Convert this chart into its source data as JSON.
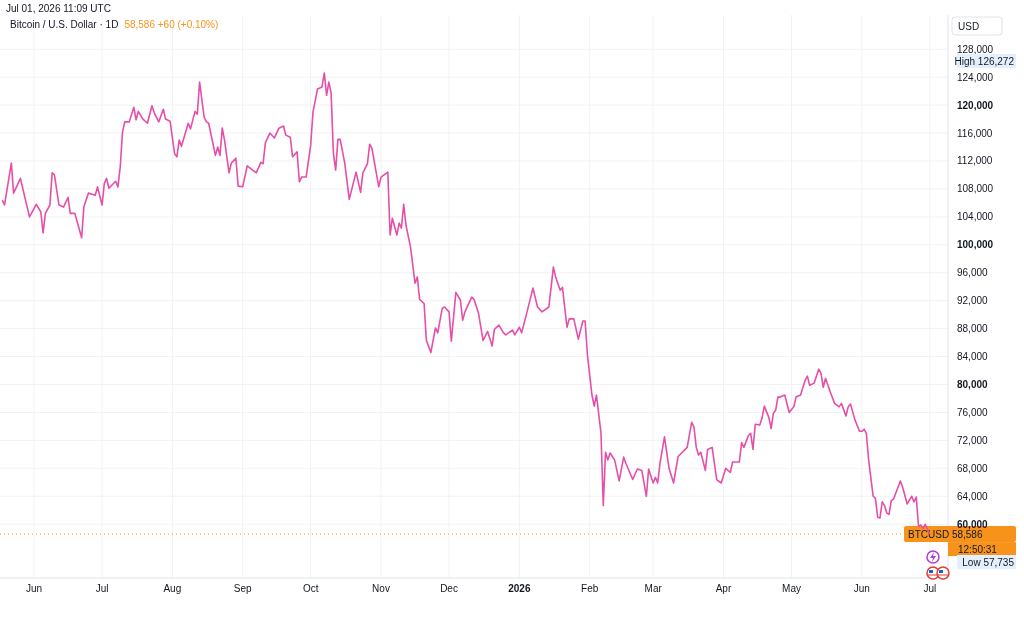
{
  "chart_data": {
    "type": "line",
    "title": "Bitcoin / U.S. Dollar · 1D",
    "subtitle": "58,586 +60 (+0.10%)",
    "ylabel": "USD",
    "x": [
      "2025-05-18",
      "2025-05-19",
      "2025-05-22",
      "2025-05-23",
      "2025-05-26",
      "2025-05-30",
      "2025-06-02",
      "2025-06-04",
      "2025-06-05",
      "2025-06-06",
      "2025-06-08",
      "2025-06-09",
      "2025-06-10",
      "2025-06-12",
      "2025-06-14",
      "2025-06-16",
      "2025-06-17",
      "2025-06-19",
      "2025-06-22",
      "2025-06-23",
      "2025-06-25",
      "2025-06-28",
      "2025-06-29",
      "2025-07-01",
      "2025-07-02",
      "2025-07-03",
      "2025-07-04",
      "2025-07-07",
      "2025-07-08",
      "2025-07-09",
      "2025-07-10",
      "2025-07-11",
      "2025-07-13",
      "2025-07-15",
      "2025-07-16",
      "2025-07-17",
      "2025-07-19",
      "2025-07-21",
      "2025-07-23",
      "2025-07-24",
      "2025-07-26",
      "2025-07-28",
      "2025-07-29",
      "2025-07-31",
      "2025-08-02",
      "2025-08-03",
      "2025-08-04",
      "2025-08-05",
      "2025-08-08",
      "2025-08-09",
      "2025-08-11",
      "2025-08-12",
      "2025-08-13",
      "2025-08-15",
      "2025-08-16",
      "2025-08-17",
      "2025-08-20",
      "2025-08-21",
      "2025-08-22",
      "2025-08-23",
      "2025-08-24",
      "2025-08-26",
      "2025-08-27",
      "2025-08-29",
      "2025-08-30",
      "2025-09-01",
      "2025-09-03",
      "2025-09-05",
      "2025-09-07",
      "2025-09-09",
      "2025-09-10",
      "2025-09-11",
      "2025-09-13",
      "2025-09-15",
      "2025-09-17",
      "2025-09-19",
      "2025-09-20",
      "2025-09-22",
      "2025-09-23",
      "2025-09-25",
      "2025-09-26",
      "2025-09-27",
      "2025-09-29",
      "2025-10-01",
      "2025-10-02",
      "2025-10-04",
      "2025-10-06",
      "2025-10-07",
      "2025-10-08",
      "2025-10-09",
      "2025-10-10",
      "2025-10-11",
      "2025-10-12",
      "2025-10-13",
      "2025-10-14",
      "2025-10-16",
      "2025-10-18",
      "2025-10-21",
      "2025-10-23",
      "2025-10-24",
      "2025-10-26",
      "2025-10-27",
      "2025-10-28",
      "2025-10-31",
      "2025-11-01",
      "2025-11-04",
      "2025-11-05",
      "2025-11-06",
      "2025-11-08",
      "2025-11-09",
      "2025-11-10",
      "2025-11-11",
      "2025-11-12",
      "2025-11-14",
      "2025-11-16",
      "2025-11-17",
      "2025-11-18",
      "2025-11-20",
      "2025-11-21",
      "2025-11-23",
      "2025-11-25",
      "2025-11-26",
      "2025-11-28",
      "2025-11-29",
      "2025-12-01",
      "2025-12-02",
      "2025-12-04",
      "2025-12-06",
      "2025-12-07",
      "2025-12-08",
      "2025-12-11",
      "2025-12-12",
      "2025-12-14",
      "2025-12-16",
      "2025-12-18",
      "2025-12-20",
      "2025-12-21",
      "2025-12-23",
      "2025-12-25",
      "2025-12-26",
      "2025-12-29",
      "2025-12-30",
      "2026-01-01",
      "2026-01-02",
      "2026-01-04",
      "2026-01-07",
      "2026-01-09",
      "2026-01-11",
      "2026-01-14",
      "2026-01-16",
      "2026-01-17",
      "2026-01-19",
      "2026-01-20",
      "2026-01-22",
      "2026-01-23",
      "2026-01-25",
      "2026-01-27",
      "2026-01-29",
      "2026-01-30",
      "2026-01-31",
      "2026-02-02",
      "2026-02-03",
      "2026-02-04",
      "2026-02-06",
      "2026-02-07",
      "2026-02-08",
      "2026-02-09",
      "2026-02-10",
      "2026-02-12",
      "2026-02-14",
      "2026-02-16",
      "2026-02-17",
      "2026-02-20",
      "2026-02-22",
      "2026-02-24",
      "2026-02-26",
      "2026-02-27",
      "2026-03-01",
      "2026-03-02",
      "2026-03-03",
      "2026-03-04",
      "2026-03-06",
      "2026-03-08",
      "2026-03-10",
      "2026-03-12",
      "2026-03-16",
      "2026-03-18",
      "2026-03-19",
      "2026-03-20",
      "2026-03-21",
      "2026-03-22",
      "2026-03-24",
      "2026-03-25",
      "2026-03-27",
      "2026-03-29",
      "2026-03-31",
      "2026-04-02",
      "2026-04-04",
      "2026-04-05",
      "2026-04-08",
      "2026-04-09",
      "2026-04-10",
      "2026-04-12",
      "2026-04-13",
      "2026-04-14",
      "2026-04-15",
      "2026-04-17",
      "2026-04-18",
      "2026-04-19",
      "2026-04-21",
      "2026-04-22",
      "2026-04-23",
      "2026-04-24",
      "2026-04-25",
      "2026-04-26",
      "2026-04-28",
      "2026-04-30",
      "2026-05-02",
      "2026-05-03",
      "2026-05-05",
      "2026-05-07",
      "2026-05-08",
      "2026-05-09",
      "2026-05-11",
      "2026-05-13",
      "2026-05-14",
      "2026-05-15",
      "2026-05-16",
      "2026-05-18",
      "2026-05-20",
      "2026-05-22",
      "2026-05-23",
      "2026-05-25",
      "2026-05-26",
      "2026-05-27",
      "2026-05-29",
      "2026-05-31",
      "2026-06-01",
      "2026-06-02",
      "2026-06-03",
      "2026-06-04",
      "2026-06-06",
      "2026-06-07",
      "2026-06-08",
      "2026-06-09",
      "2026-06-10",
      "2026-06-11",
      "2026-06-12",
      "2026-06-13",
      "2026-06-14",
      "2026-06-15",
      "2026-06-18",
      "2026-06-19",
      "2026-06-21",
      "2026-06-23",
      "2026-06-24",
      "2026-06-25",
      "2026-06-26",
      "2026-06-27",
      "2026-06-28",
      "2026-06-29",
      "2026-07-01"
    ],
    "series": [
      {
        "color": "#e64fa8",
        "values": [
          106400,
          105700,
          111700,
          107400,
          109500,
          104000,
          105800,
          104700,
          101700,
          104500,
          105700,
          110300,
          110000,
          105700,
          105400,
          106800,
          104500,
          104500,
          101000,
          105500,
          107400,
          107100,
          108300,
          105700,
          108800,
          109500,
          108100,
          109100,
          108300,
          111100,
          116100,
          117600,
          117600,
          119700,
          117900,
          119100,
          118000,
          117400,
          119900,
          118900,
          117600,
          119400,
          118000,
          117700,
          113000,
          112600,
          115000,
          114100,
          117400,
          116600,
          119100,
          118700,
          123300,
          118300,
          117600,
          117400,
          112800,
          114000,
          112800,
          116700,
          115000,
          110300,
          111700,
          112400,
          108400,
          108300,
          111300,
          110800,
          110300,
          111800,
          111600,
          114600,
          116000,
          115300,
          116700,
          117000,
          115700,
          115400,
          112600,
          113300,
          109000,
          109700,
          109700,
          114300,
          119000,
          122300,
          122600,
          124600,
          121400,
          123300,
          121700,
          113100,
          110700,
          115100,
          115100,
          111700,
          106500,
          110400,
          107500,
          110300,
          111600,
          114400,
          113800,
          108300,
          109700,
          110400,
          101400,
          103800,
          101400,
          103100,
          102400,
          105800,
          102800,
          99700,
          94500,
          95400,
          92200,
          91600,
          86300,
          84600,
          88100,
          87400,
          90900,
          91100,
          90400,
          86200,
          93200,
          92100,
          89200,
          90400,
          92500,
          92200,
          90200,
          86300,
          87600,
          85500,
          87900,
          88500,
          87400,
          87100,
          87800,
          87100,
          88200,
          87400,
          89900,
          93800,
          91100,
          90400,
          91100,
          96800,
          95400,
          93500,
          93900,
          88200,
          89400,
          89400,
          86500,
          89100,
          89100,
          84300,
          78500,
          76900,
          78500,
          73000,
          62700,
          70300,
          69200,
          70200,
          69200,
          66200,
          69600,
          68700,
          66400,
          67900,
          67700,
          64000,
          67900,
          65900,
          66700,
          65900,
          68700,
          72500,
          68000,
          65900,
          69700,
          71000,
          74600,
          73900,
          71000,
          69900,
          70300,
          67700,
          70700,
          71000,
          66400,
          65900,
          68000,
          67400,
          68900,
          68900,
          71700,
          71000,
          72700,
          73000,
          70700,
          74300,
          74200,
          75200,
          76900,
          75300,
          73700,
          75900,
          76300,
          78200,
          78200,
          78500,
          76000,
          76800,
          78200,
          78500,
          80600,
          81200,
          79900,
          80200,
          82200,
          81600,
          79600,
          80900,
          79000,
          77300,
          76800,
          77300,
          75500,
          76800,
          77200,
          74900,
          73300,
          73300,
          73600,
          73000,
          69200,
          64000,
          63700,
          61000,
          60900,
          63200,
          62700,
          61600,
          61400,
          63400,
          63600,
          66200,
          65300,
          62900,
          64000,
          63200,
          63900,
          59700,
          59900,
          59400,
          60000,
          58600
        ]
      }
    ],
    "xlim": [
      "2025-05-17",
      "2026-07-09"
    ],
    "xticks": [
      {
        "value": "2025-06-01",
        "label": "Jun"
      },
      {
        "value": "2025-07-01",
        "label": "Jul"
      },
      {
        "value": "2025-08-01",
        "label": "Aug"
      },
      {
        "value": "2025-09-01",
        "label": "Sep"
      },
      {
        "value": "2025-10-01",
        "label": "Oct"
      },
      {
        "value": "2025-11-01",
        "label": "Nov"
      },
      {
        "value": "2025-12-01",
        "label": "Dec"
      },
      {
        "value": "2026-01-01",
        "label": "2026"
      },
      {
        "value": "2026-02-01",
        "label": "Feb"
      },
      {
        "value": "2026-03-01",
        "label": "Mar"
      },
      {
        "value": "2026-04-01",
        "label": "Apr"
      },
      {
        "value": "2026-05-01",
        "label": "May"
      },
      {
        "value": "2026-06-01",
        "label": "Jun"
      },
      {
        "value": "2026-07-01",
        "label": "Jul"
      }
    ],
    "ylim": [
      52300,
      132900
    ],
    "yticks": [
      {
        "value": 60000,
        "label": "60,000"
      },
      {
        "value": 64000,
        "label": "64,000"
      },
      {
        "value": 68000,
        "label": "68,000"
      },
      {
        "value": 72000,
        "label": "72,000"
      },
      {
        "value": 76000,
        "label": "76,000"
      },
      {
        "value": 80000,
        "label": "80,000"
      },
      {
        "value": 84000,
        "label": "84,000"
      },
      {
        "value": 88000,
        "label": "88,000"
      },
      {
        "value": 92000,
        "label": "92,000"
      },
      {
        "value": 96000,
        "label": "96,000"
      },
      {
        "value": 100000,
        "label": "100,000"
      },
      {
        "value": 104000,
        "label": "104,000"
      },
      {
        "value": 108000,
        "label": "108,000"
      },
      {
        "value": 112000,
        "label": "112,000"
      },
      {
        "value": 116000,
        "label": "116,000"
      },
      {
        "value": 120000,
        "label": "120,000"
      },
      {
        "value": 124000,
        "label": "124,000"
      },
      {
        "value": 128000,
        "label": "128,000"
      }
    ],
    "grid": true,
    "ref_lines": [
      {
        "axis": "y",
        "value": 58586,
        "label": "BTCUSD 58,586",
        "color": "#f7931a",
        "line_style": "dotted"
      }
    ],
    "annotations": [
      "High 126,272",
      "Low 57,735",
      "12:50:31",
      "Jul 01, 2026 11:09 UTC"
    ]
  }
}
